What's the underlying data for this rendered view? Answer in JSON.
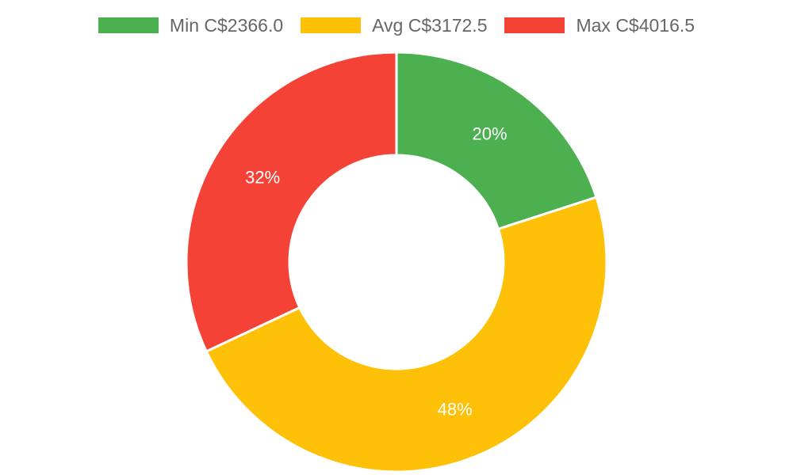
{
  "chart_data": {
    "type": "pie",
    "donut": true,
    "legend_position": "top",
    "categories": [
      "Min C$2366.0",
      "Avg C$3172.5",
      "Max C$4016.5"
    ],
    "values": [
      20,
      48,
      32
    ],
    "value_labels": [
      "20%",
      "48%",
      "32%"
    ],
    "colors": [
      "#4caf50",
      "#ffc107",
      "#f44336"
    ]
  }
}
